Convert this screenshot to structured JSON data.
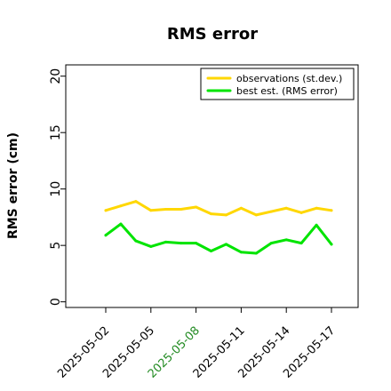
{
  "chart_data": {
    "type": "line",
    "title": "RMS error",
    "xlabel": "",
    "ylabel": "RMS error (cm)",
    "ylim": [
      -0.5,
      21
    ],
    "yticks": [
      0,
      5,
      10,
      15,
      20
    ],
    "x_dates": [
      "2025-05-02",
      "2025-05-03",
      "2025-05-04",
      "2025-05-05",
      "2025-05-06",
      "2025-05-07",
      "2025-05-08",
      "2025-05-09",
      "2025-05-10",
      "2025-05-11",
      "2025-05-12",
      "2025-05-13",
      "2025-05-14",
      "2025-05-15",
      "2025-05-16",
      "2025-05-17"
    ],
    "x_tick_labels": [
      "2025-05-02",
      "2025-05-05",
      "2025-05-08",
      "2025-05-11",
      "2025-05-14",
      "2025-05-17"
    ],
    "highlighted_tick": "2025-05-08",
    "highlight_color": "#228b22",
    "series": [
      {
        "name": "observations (st.dev.)",
        "color": "#ffd700",
        "values": [
          8.1,
          8.5,
          8.9,
          8.1,
          8.2,
          8.2,
          8.4,
          7.8,
          7.7,
          8.3,
          7.7,
          8.0,
          8.3,
          7.9,
          8.3,
          8.1
        ]
      },
      {
        "name": "best est. (RMS error)",
        "color": "#00e400",
        "values": [
          5.9,
          6.9,
          5.4,
          4.9,
          5.3,
          5.2,
          5.2,
          4.5,
          5.1,
          4.4,
          4.3,
          5.2,
          5.5,
          5.2,
          6.8,
          5.1
        ]
      }
    ],
    "grid": false,
    "legend_position": "top-right"
  }
}
